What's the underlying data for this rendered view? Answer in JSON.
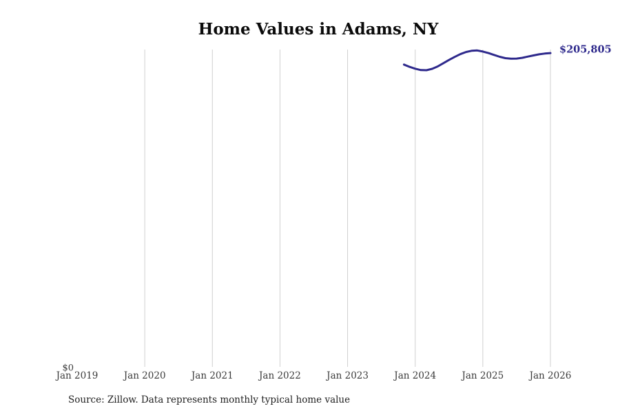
{
  "colors": {
    "background": "#ffffff",
    "line": "#2e298c",
    "gridline": "#cfcfcf",
    "tick_text": "#3a3a3a",
    "title_text": "#0b0b0b",
    "source_text": "#1f1f1f"
  },
  "chart_data": {
    "type": "line",
    "title": "Home Values in Adams, NY",
    "source_note": "Source: Zillow. Data represents monthly typical home value",
    "end_label": "$205,805",
    "end_value": 205805,
    "grid": "vertical-only",
    "legend": "none",
    "y_axis": {
      "zero_label": "$0",
      "ylim": [
        0,
        208100
      ]
    },
    "x_axis": {
      "tick_labels": [
        "Jan 2019",
        "Jan 2020",
        "Jan 2021",
        "Jan 2022",
        "Jan 2023",
        "Jan 2024",
        "Jan 2025",
        "Jan 2026"
      ],
      "gridline_ticks": [
        "Jan 2020",
        "Jan 2021",
        "Jan 2022",
        "Jan 2023",
        "Jan 2024",
        "Jan 2025",
        "Jan 2026"
      ],
      "range_start": "2019-01",
      "range_end": "2026-01"
    },
    "series": [
      {
        "name": "Monthly typical home value",
        "color": "#2e298c",
        "points": [
          {
            "date": "2023-11",
            "value": 198300
          },
          {
            "date": "2023-12",
            "value": 196800
          },
          {
            "date": "2024-01",
            "value": 195600
          },
          {
            "date": "2024-02",
            "value": 194700
          },
          {
            "date": "2024-03",
            "value": 194600
          },
          {
            "date": "2024-04",
            "value": 195500
          },
          {
            "date": "2024-05",
            "value": 197100
          },
          {
            "date": "2024-06",
            "value": 199200
          },
          {
            "date": "2024-07",
            "value": 201300
          },
          {
            "date": "2024-08",
            "value": 203300
          },
          {
            "date": "2024-09",
            "value": 205100
          },
          {
            "date": "2024-10",
            "value": 206500
          },
          {
            "date": "2024-11",
            "value": 207300
          },
          {
            "date": "2024-12",
            "value": 207500
          },
          {
            "date": "2025-01",
            "value": 206800
          },
          {
            "date": "2025-02",
            "value": 205800
          },
          {
            "date": "2025-03",
            "value": 204600
          },
          {
            "date": "2025-04",
            "value": 203400
          },
          {
            "date": "2025-05",
            "value": 202500
          },
          {
            "date": "2025-06",
            "value": 202100
          },
          {
            "date": "2025-07",
            "value": 202200
          },
          {
            "date": "2025-08",
            "value": 202700
          },
          {
            "date": "2025-09",
            "value": 203500
          },
          {
            "date": "2025-10",
            "value": 204300
          },
          {
            "date": "2025-11",
            "value": 205000
          },
          {
            "date": "2025-12",
            "value": 205500
          },
          {
            "date": "2026-01",
            "value": 205805
          }
        ]
      }
    ]
  }
}
